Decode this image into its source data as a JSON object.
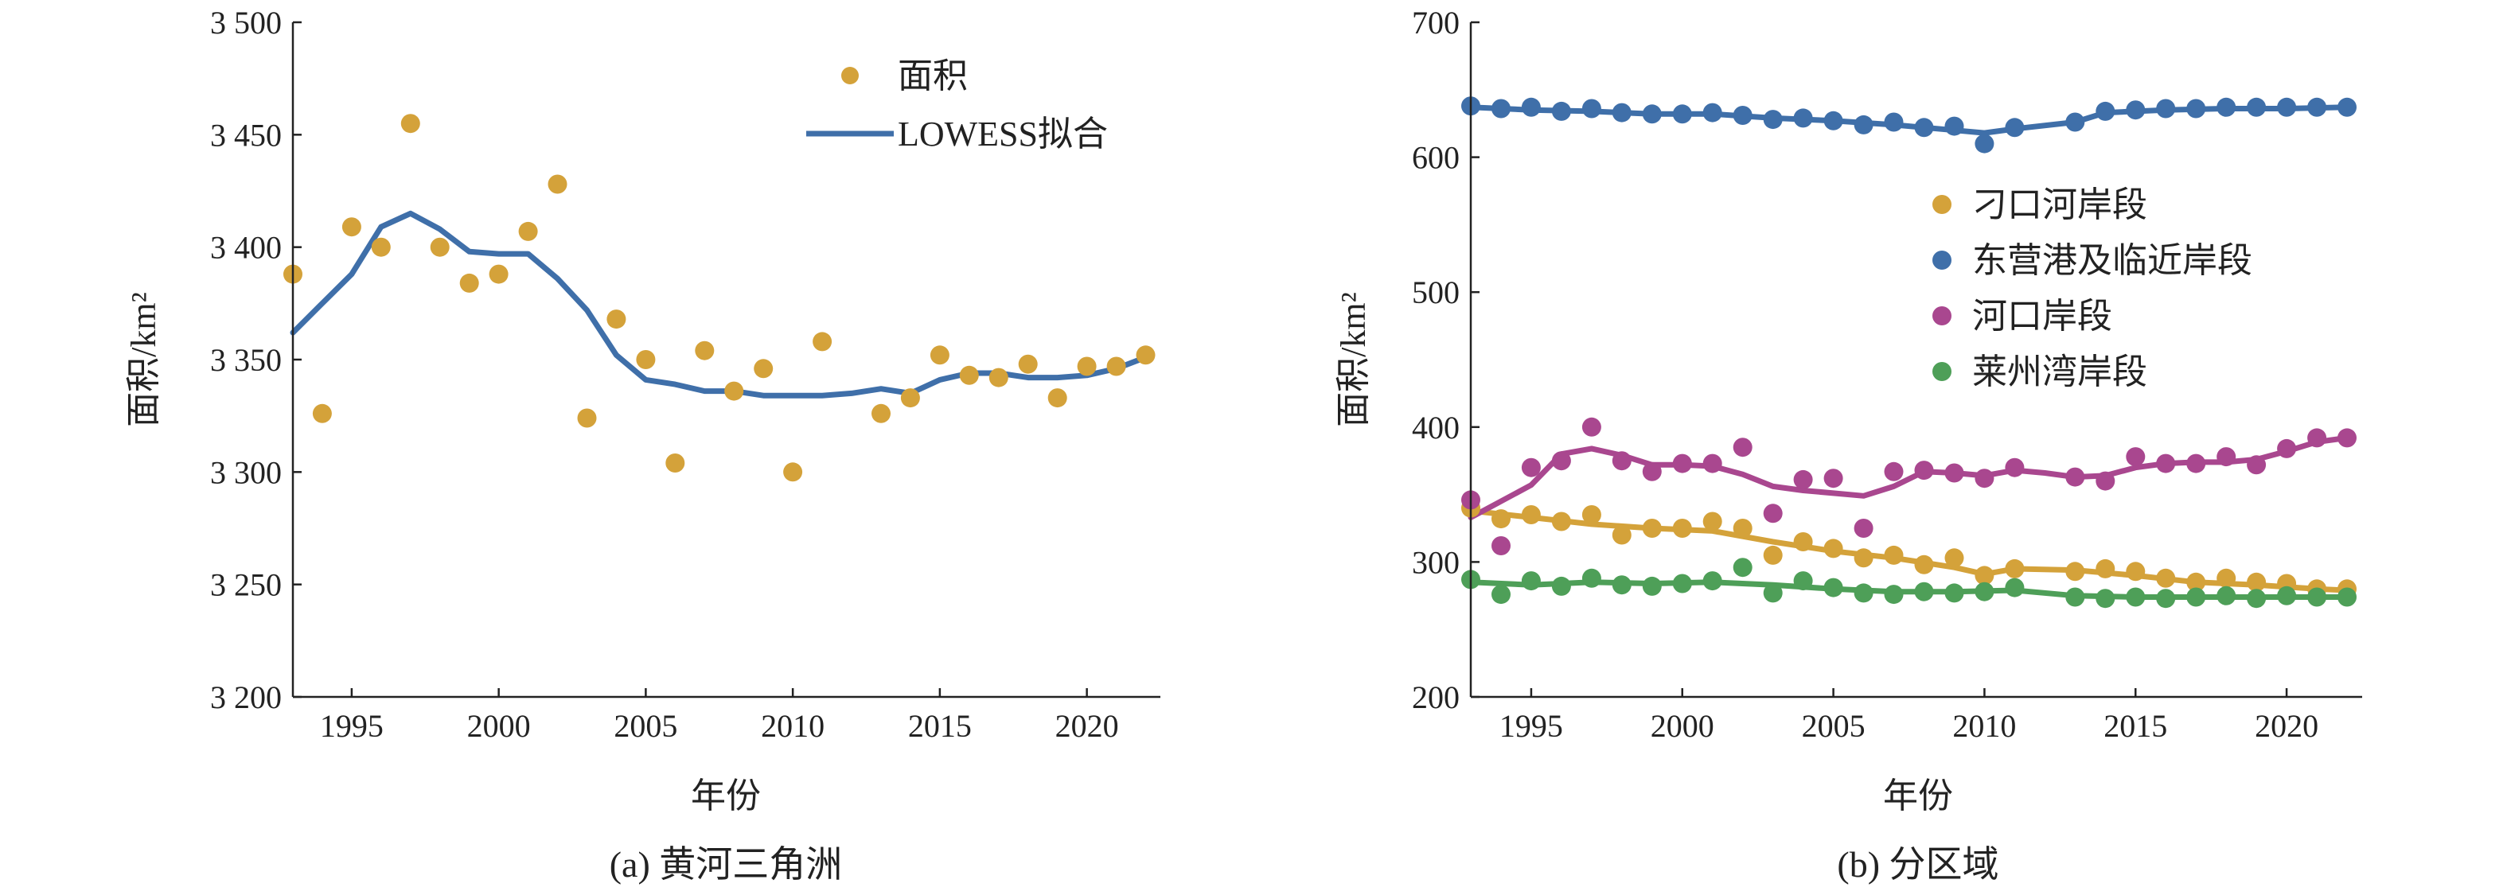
{
  "colors": {
    "orange": "#D4A23A",
    "blue": "#3F6FA9",
    "purple": "#A9478F",
    "green": "#4E9F58",
    "axis": "#222222"
  },
  "chart_data": [
    {
      "type": "scatter",
      "caption": "(a) 黄河三角洲",
      "xlabel": "年份",
      "ylabel": "面积/km²",
      "xlim": [
        1993,
        2022.5
      ],
      "ylim": [
        3200,
        3500
      ],
      "xticks": [
        1995,
        2000,
        2005,
        2010,
        2015,
        2020
      ],
      "xtick_labels": [
        "1995",
        "2000",
        "2005",
        "2010",
        "2015",
        "2020"
      ],
      "yticks": [
        3200,
        3250,
        3300,
        3350,
        3400,
        3450,
        3500
      ],
      "ytick_labels": [
        "3 200",
        "3 250",
        "3 300",
        "3 350",
        "3 400",
        "3 450",
        "3 500"
      ],
      "legend_position": "top-right",
      "series": [
        {
          "name": "面积",
          "kind": "points",
          "color": "#D4A23A",
          "x": [
            1993,
            1994,
            1995,
            1996,
            1997,
            1998,
            1999,
            2000,
            2001,
            2002,
            2003,
            2004,
            2005,
            2006,
            2007,
            2008,
            2009,
            2010,
            2011,
            2013,
            2014,
            2015,
            2016,
            2017,
            2018,
            2019,
            2020,
            2021,
            2022
          ],
          "y": [
            3388,
            3326,
            3409,
            3400,
            3455,
            3400,
            3384,
            3388,
            3407,
            3428,
            3324,
            3368,
            3350,
            3304,
            3354,
            3336,
            3346,
            3300,
            3358,
            3326,
            3333,
            3352,
            3343,
            3342,
            3348,
            3333,
            3347,
            3347,
            3352
          ]
        },
        {
          "name": "LOWESS拟合",
          "kind": "line",
          "color": "#3F6FA9",
          "x": [
            1993,
            1994,
            1995,
            1996,
            1997,
            1998,
            1999,
            2000,
            2001,
            2002,
            2003,
            2004,
            2005,
            2006,
            2007,
            2008,
            2009,
            2010,
            2011,
            2012,
            2013,
            2014,
            2015,
            2016,
            2017,
            2018,
            2019,
            2020,
            2021,
            2022
          ],
          "y": [
            3362,
            3375,
            3388,
            3409,
            3415,
            3408,
            3398,
            3397,
            3397,
            3386,
            3372,
            3352,
            3341,
            3339,
            3336,
            3336,
            3334,
            3334,
            3334,
            3335,
            3337,
            3335,
            3341,
            3344,
            3344,
            3342,
            3342,
            3343,
            3346,
            3351
          ]
        }
      ]
    },
    {
      "type": "scatter",
      "caption": "(b) 分区域",
      "xlabel": "年份",
      "ylabel": "面积/km²",
      "xlim": [
        1993,
        2022.5
      ],
      "ylim": [
        200,
        700
      ],
      "xticks": [
        1995,
        2000,
        2005,
        2010,
        2015,
        2020
      ],
      "xtick_labels": [
        "1995",
        "2000",
        "2005",
        "2010",
        "2015",
        "2020"
      ],
      "yticks": [
        200,
        300,
        400,
        500,
        600,
        700
      ],
      "ytick_labels": [
        "200",
        "300",
        "400",
        "500",
        "600",
        "700"
      ],
      "legend_position": "center-right",
      "series": [
        {
          "name": "刁口河岸段",
          "color": "#D4A23A",
          "x": [
            1993,
            1994,
            1995,
            1996,
            1997,
            1998,
            1999,
            2000,
            2001,
            2002,
            2003,
            2004,
            2005,
            2006,
            2007,
            2008,
            2009,
            2010,
            2011,
            2013,
            2014,
            2015,
            2016,
            2017,
            2018,
            2019,
            2020,
            2021,
            2022
          ],
          "y": [
            340,
            332,
            335,
            330,
            335,
            320,
            325,
            325,
            330,
            325,
            305,
            315,
            310,
            303,
            305,
            298,
            303,
            290,
            295,
            293,
            295,
            293,
            288,
            285,
            288,
            285,
            284,
            280,
            280
          ],
          "fit_x": [
            1993,
            1995,
            1997,
            1999,
            2001,
            2003,
            2005,
            2007,
            2009,
            2010,
            2011,
            2013,
            2015,
            2017,
            2019,
            2021,
            2022
          ],
          "fit_y": [
            338,
            333,
            328,
            325,
            323,
            315,
            308,
            303,
            296,
            291,
            295,
            294,
            290,
            285,
            283,
            280,
            279
          ]
        },
        {
          "name": "东营港及临近岸段",
          "color": "#3F6FA9",
          "x": [
            1993,
            1994,
            1995,
            1996,
            1997,
            1998,
            1999,
            2000,
            2001,
            2002,
            2003,
            2004,
            2005,
            2006,
            2007,
            2008,
            2009,
            2010,
            2011,
            2013,
            2014,
            2015,
            2016,
            2017,
            2018,
            2019,
            2020,
            2021,
            2022
          ],
          "y": [
            638,
            636,
            637,
            634,
            636,
            633,
            632,
            632,
            633,
            631,
            628,
            629,
            627,
            624,
            626,
            622,
            623,
            610,
            622,
            626,
            634,
            635,
            636,
            636,
            637,
            637,
            637,
            637,
            637
          ],
          "fit_x": [
            1993,
            1995,
            1997,
            1999,
            2001,
            2003,
            2005,
            2007,
            2009,
            2010,
            2011,
            2013,
            2014,
            2016,
            2018,
            2020,
            2022
          ],
          "fit_y": [
            637,
            635,
            634,
            632,
            632,
            629,
            627,
            624,
            620,
            618,
            621,
            626,
            633,
            635,
            636,
            636,
            637
          ]
        },
        {
          "name": "河口岸段",
          "color": "#A9478F",
          "x": [
            1993,
            1994,
            1995,
            1996,
            1997,
            1998,
            1999,
            2000,
            2001,
            2002,
            2003,
            2004,
            2005,
            2006,
            2007,
            2008,
            2009,
            2010,
            2011,
            2013,
            2014,
            2015,
            2016,
            2017,
            2018,
            2019,
            2020,
            2021,
            2022
          ],
          "y": [
            346,
            312,
            370,
            375,
            400,
            375,
            367,
            373,
            373,
            385,
            336,
            361,
            362,
            325,
            367,
            368,
            366,
            362,
            370,
            363,
            360,
            378,
            373,
            373,
            378,
            372,
            384,
            392,
            392
          ],
          "fit_x": [
            1993,
            1994,
            1995,
            1996,
            1997,
            1998,
            1999,
            2000,
            2001,
            2002,
            2003,
            2004,
            2005,
            2006,
            2007,
            2008,
            2009,
            2010,
            2011,
            2012,
            2013,
            2014,
            2015,
            2016,
            2017,
            2018,
            2019,
            2020,
            2021,
            2022
          ],
          "fit_y": [
            333,
            345,
            357,
            380,
            384,
            379,
            372,
            372,
            371,
            365,
            356,
            353,
            351,
            349,
            356,
            367,
            366,
            364,
            368,
            366,
            363,
            364,
            370,
            373,
            374,
            374,
            376,
            382,
            389,
            392
          ]
        },
        {
          "name": "莱州湾岸段",
          "color": "#4E9F58",
          "x": [
            1993,
            1994,
            1995,
            1996,
            1997,
            1998,
            1999,
            2000,
            2001,
            2002,
            2003,
            2004,
            2005,
            2006,
            2007,
            2008,
            2009,
            2010,
            2011,
            2013,
            2014,
            2015,
            2016,
            2017,
            2018,
            2019,
            2020,
            2021,
            2022
          ],
          "y": [
            287,
            276,
            286,
            282,
            288,
            283,
            282,
            284,
            286,
            296,
            277,
            286,
            281,
            277,
            276,
            278,
            277,
            278,
            281,
            274,
            273,
            274,
            273,
            274,
            275,
            273,
            275,
            274,
            274
          ],
          "fit_x": [
            1993,
            1995,
            1997,
            1999,
            2001,
            2003,
            2005,
            2007,
            2009,
            2011,
            2013,
            2015,
            2017,
            2019,
            2021,
            2022
          ],
          "fit_y": [
            285,
            283,
            285,
            284,
            285,
            283,
            280,
            278,
            278,
            279,
            275,
            274,
            274,
            274,
            274,
            274
          ]
        }
      ]
    }
  ]
}
